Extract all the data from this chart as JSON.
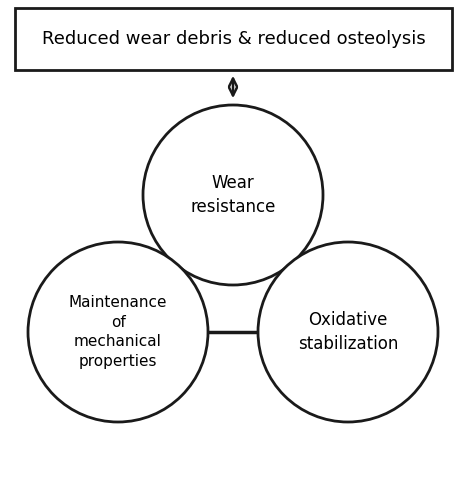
{
  "title_box_text": "Reduced wear debris & reduced osteolysis",
  "circle_top_label": "Wear\nresistance",
  "circle_bottom_left_label": "Maintenance\nof\nmechanical\nproperties",
  "circle_bottom_right_label": "Oxidative\nstabilization",
  "bg_color": "#ffffff",
  "circle_edge_color": "#1a1a1a",
  "circle_face_color": "white",
  "circle_linewidth": 2.0,
  "text_fontsize": 12,
  "title_fontsize": 13,
  "line_color": "#1a1a1a",
  "line_width": 2.5,
  "title_text_fontweight": "normal"
}
